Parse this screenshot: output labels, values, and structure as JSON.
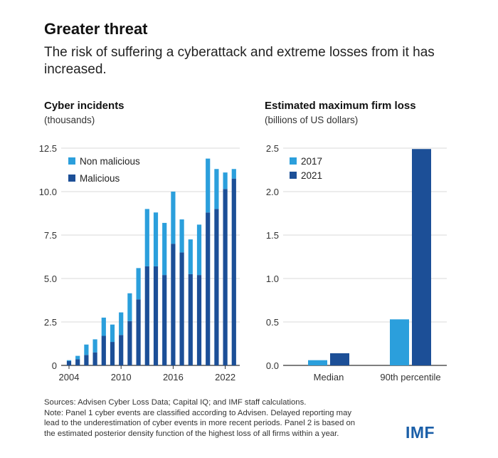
{
  "title": "Greater threat",
  "subtitle": "The risk of suffering a cyberattack and extreme losses from it has increased.",
  "colors": {
    "light": "#2b9fdc",
    "dark": "#1c4f97"
  },
  "footer": {
    "line1": "Sources: Advisen Cyber Loss Data; Capital IQ; and IMF staff calculations.",
    "line2": "Note: Panel 1 cyber events are classified according to Advisen. Delayed reporting may",
    "line3": "lead to the underestimation of cyber events in more recent periods. Panel 2 is based on",
    "line4": "the estimated posterior density function of the highest loss of all firms within a year."
  },
  "logo": "IMF",
  "chart_data": [
    {
      "type": "bar",
      "stacked": true,
      "title": "Cyber incidents",
      "subtitle": "(thousands)",
      "x": [
        2004,
        2005,
        2006,
        2007,
        2008,
        2009,
        2010,
        2011,
        2012,
        2013,
        2014,
        2015,
        2016,
        2017,
        2018,
        2019,
        2020,
        2021,
        2022,
        2023
      ],
      "xticks": [
        "2004",
        "2010",
        "2016",
        "2022"
      ],
      "ylim": [
        0,
        12.5
      ],
      "yticks": [
        "0",
        "2.5",
        "5.0",
        "7.5",
        "10.0",
        "12.5"
      ],
      "legend_position": "top-left",
      "series": [
        {
          "name": "Non malicious",
          "color": "#2b9fdc",
          "values": [
            0.05,
            0.2,
            0.6,
            0.75,
            1.05,
            1.0,
            1.3,
            1.6,
            1.8,
            3.3,
            3.1,
            3.0,
            3.0,
            1.9,
            2.0,
            2.9,
            3.1,
            2.3,
            0.95,
            0.55
          ]
        },
        {
          "name": "Malicious",
          "color": "#1c4f97",
          "values": [
            0.25,
            0.35,
            0.6,
            0.75,
            1.7,
            1.35,
            1.75,
            2.55,
            3.8,
            5.7,
            5.7,
            5.2,
            7.0,
            6.5,
            5.25,
            5.2,
            8.8,
            9.0,
            10.15,
            10.75
          ]
        }
      ]
    },
    {
      "type": "bar",
      "title": "Estimated maximum firm loss",
      "subtitle": "(billions of US dollars)",
      "categories": [
        "Median",
        "90th percentile"
      ],
      "ylim": [
        0,
        2.5
      ],
      "yticks": [
        "0.0",
        "0.5",
        "1.0",
        "1.5",
        "2.0",
        "2.5"
      ],
      "legend_position": "top-left",
      "series": [
        {
          "name": "2017",
          "color": "#2b9fdc",
          "values": [
            0.06,
            0.53
          ]
        },
        {
          "name": "2021",
          "color": "#1c4f97",
          "values": [
            0.14,
            2.49
          ]
        }
      ]
    }
  ]
}
